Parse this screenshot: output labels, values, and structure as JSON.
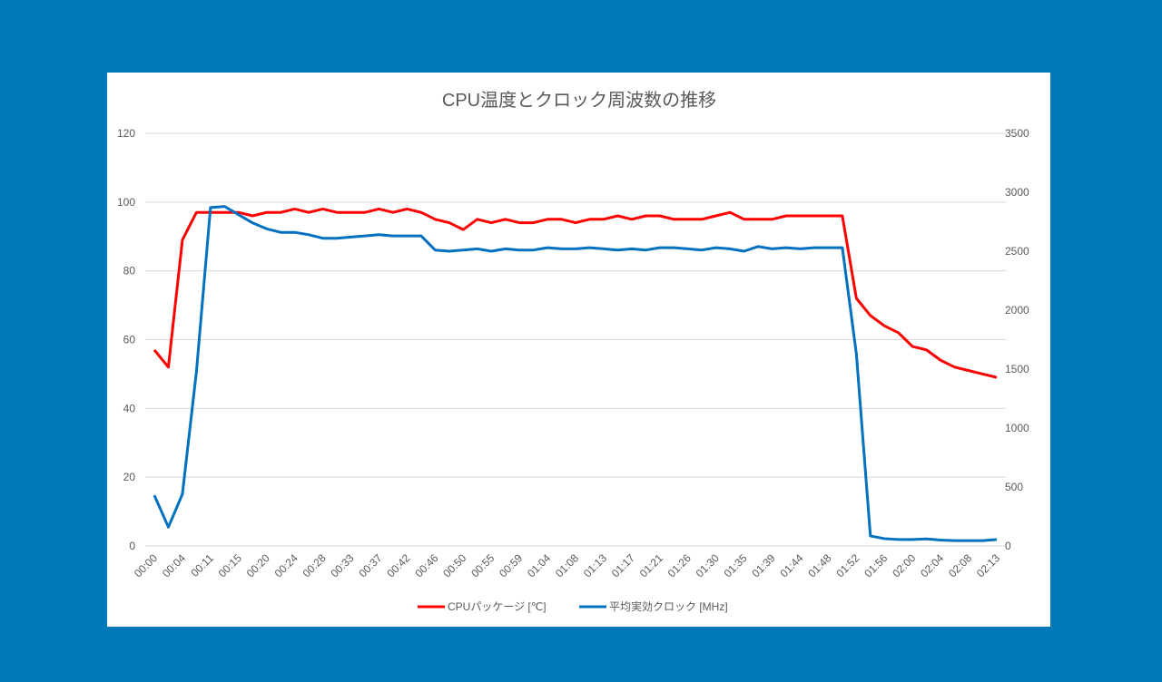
{
  "chart_data": {
    "type": "line",
    "title": "CPU温度とクロック周波数の推移",
    "x_tick_labels": [
      "00:00",
      "00:04",
      "00:11",
      "00:15",
      "00:20",
      "00:24",
      "00:28",
      "00:33",
      "00:37",
      "00:42",
      "00:46",
      "00:50",
      "00:55",
      "00:59",
      "01:04",
      "01:08",
      "01:13",
      "01:17",
      "01:21",
      "01:26",
      "01:30",
      "01:35",
      "01:39",
      "01:44",
      "01:48",
      "01:52",
      "01:56",
      "02:00",
      "02:04",
      "02:08",
      "02:13"
    ],
    "y_left": {
      "ylim": [
        0,
        120
      ],
      "ticks": [
        "0",
        "20",
        "40",
        "60",
        "80",
        "100",
        "120"
      ]
    },
    "y_right": {
      "ylim": [
        0,
        3500
      ],
      "ticks": [
        "0",
        "500",
        "1000",
        "1500",
        "2000",
        "2500",
        "3000",
        "3500"
      ]
    },
    "grid": true,
    "legend_position": "bottom",
    "series": [
      {
        "name": "CPUパッケージ [℃]",
        "axis": "left",
        "color": "#FF0000",
        "values": [
          57,
          52,
          89,
          97,
          97,
          97,
          97,
          96,
          97,
          97,
          98,
          97,
          98,
          97,
          97,
          97,
          98,
          97,
          98,
          97,
          95,
          94,
          92,
          95,
          94,
          95,
          94,
          94,
          95,
          95,
          94,
          95,
          95,
          96,
          95,
          96,
          96,
          95,
          95,
          95,
          96,
          97,
          95,
          95,
          95,
          96,
          96,
          96,
          96,
          96,
          72,
          67,
          64,
          62,
          58,
          57,
          54,
          52,
          51,
          50,
          49
        ]
      },
      {
        "name": "平均実効クロック [MHz]",
        "axis": "right",
        "color": "#0070C0",
        "values": [
          430,
          160,
          440,
          1480,
          2870,
          2880,
          2810,
          2740,
          2690,
          2660,
          2660,
          2640,
          2610,
          2610,
          2620,
          2630,
          2640,
          2630,
          2630,
          2630,
          2510,
          2500,
          2510,
          2520,
          2500,
          2520,
          2510,
          2510,
          2530,
          2520,
          2520,
          2530,
          2520,
          2510,
          2520,
          2510,
          2530,
          2530,
          2520,
          2510,
          2530,
          2520,
          2500,
          2540,
          2520,
          2530,
          2520,
          2530,
          2530,
          2530,
          1630,
          85,
          62,
          55,
          55,
          60,
          50,
          45,
          45,
          45,
          55
        ]
      }
    ]
  }
}
